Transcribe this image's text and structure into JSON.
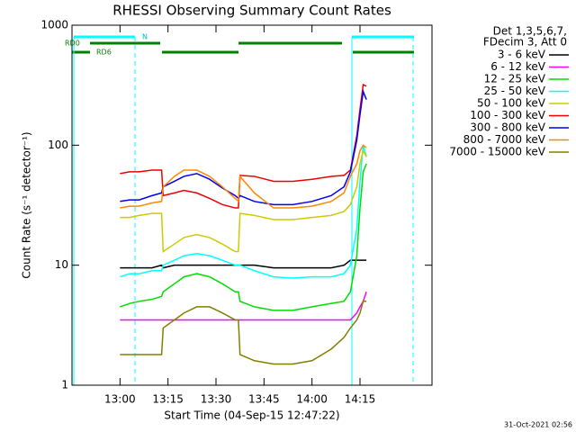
{
  "chart_data": {
    "type": "line",
    "title": "RHESSI Observing Summary Count Rates",
    "x_label": "Start Time (04-Sep-15 12:47:22)",
    "y_label": "Count Rate (s⁻¹ detector⁻¹)",
    "legend_header": [
      "Det 1,3,5,6,7,",
      "FDecim 3, Att 0"
    ],
    "footer": "31-Oct-2021 02:56",
    "annotations": [
      "N",
      "RD0",
      "RD6"
    ],
    "log_y": true,
    "xlim": [
      45,
      157.5
    ],
    "xticks": [
      {
        "value": 60,
        "label": "13:00"
      },
      {
        "value": 75,
        "label": "13:15"
      },
      {
        "value": 90,
        "label": "13:30"
      },
      {
        "value": 105,
        "label": "13:45"
      },
      {
        "value": 120,
        "label": "14:00"
      },
      {
        "value": 135,
        "label": "14:15"
      }
    ],
    "ylim": [
      1,
      1000
    ],
    "yticks": [
      1,
      10,
      100,
      1000
    ],
    "x": [
      60,
      63,
      66,
      70,
      73,
      73.5,
      77,
      80,
      84,
      88,
      92,
      96,
      97,
      97.5,
      102,
      108,
      114,
      120,
      126,
      130,
      132,
      134,
      135,
      136,
      137
    ],
    "series": [
      {
        "name": "3 - 6 keV",
        "color": "#000000",
        "values": [
          9.5,
          9.5,
          9.5,
          9.5,
          10,
          9.5,
          10,
          10,
          10,
          10,
          10,
          10,
          10,
          10,
          10,
          9.5,
          9.5,
          9.5,
          9.5,
          10,
          11,
          11,
          11,
          11,
          11
        ]
      },
      {
        "name": "6 - 12 keV",
        "color": "#ff00ff",
        "values": [
          3.5,
          3.5,
          3.5,
          3.5,
          3.5,
          3.5,
          3.5,
          3.5,
          3.5,
          3.5,
          3.5,
          3.5,
          3.5,
          3.5,
          3.5,
          3.5,
          3.5,
          3.5,
          3.5,
          3.5,
          3.5,
          4,
          4.5,
          5,
          6
        ]
      },
      {
        "name": "12 - 25 keV",
        "color": "#00dd00",
        "values": [
          4.5,
          4.8,
          5,
          5.2,
          5.5,
          6,
          7,
          8,
          8.5,
          8,
          7,
          6,
          6,
          5,
          4.5,
          4.2,
          4.2,
          4.5,
          4.8,
          5,
          6,
          12,
          30,
          60,
          70
        ]
      },
      {
        "name": "25 - 50 keV",
        "color": "#00ffff",
        "values": [
          8,
          8.5,
          8.5,
          9,
          9,
          10,
          11,
          12,
          12.5,
          12,
          11,
          10,
          10,
          10,
          9,
          8,
          7.8,
          8,
          8,
          8.5,
          10,
          20,
          50,
          100,
          80
        ]
      },
      {
        "name": "50 - 100 keV",
        "color": "#cccc00",
        "values": [
          25,
          25,
          26,
          27,
          27,
          13,
          15,
          17,
          18,
          17,
          15,
          13,
          13,
          27,
          26,
          24,
          24,
          25,
          26,
          28,
          32,
          45,
          70,
          90,
          80
        ]
      },
      {
        "name": "100 - 300 keV",
        "color": "#ee0000",
        "values": [
          58,
          60,
          60,
          62,
          62,
          38,
          40,
          42,
          40,
          36,
          32,
          30,
          30,
          56,
          55,
          50,
          50,
          52,
          55,
          56,
          62,
          120,
          200,
          320,
          310
        ]
      },
      {
        "name": "300 - 800 keV",
        "color": "#0000ee",
        "values": [
          34,
          35,
          35,
          38,
          40,
          45,
          50,
          55,
          58,
          52,
          44,
          38,
          36,
          38,
          34,
          32,
          32,
          34,
          38,
          45,
          60,
          110,
          180,
          280,
          240
        ]
      },
      {
        "name": "800 - 7000 keV",
        "color": "#ff8800",
        "values": [
          30,
          31,
          31,
          33,
          34,
          45,
          55,
          62,
          62,
          55,
          45,
          36,
          34,
          55,
          40,
          30,
          30,
          31,
          34,
          40,
          55,
          70,
          90,
          100,
          95
        ]
      },
      {
        "name": "7000 - 15000 keV",
        "color": "#808000",
        "values": [
          1.8,
          1.8,
          1.8,
          1.8,
          1.8,
          3,
          3.5,
          4,
          4.5,
          4.5,
          4,
          3.5,
          3.5,
          1.8,
          1.6,
          1.5,
          1.5,
          1.6,
          2,
          2.5,
          3,
          3.5,
          4,
          5,
          5
        ]
      }
    ]
  }
}
